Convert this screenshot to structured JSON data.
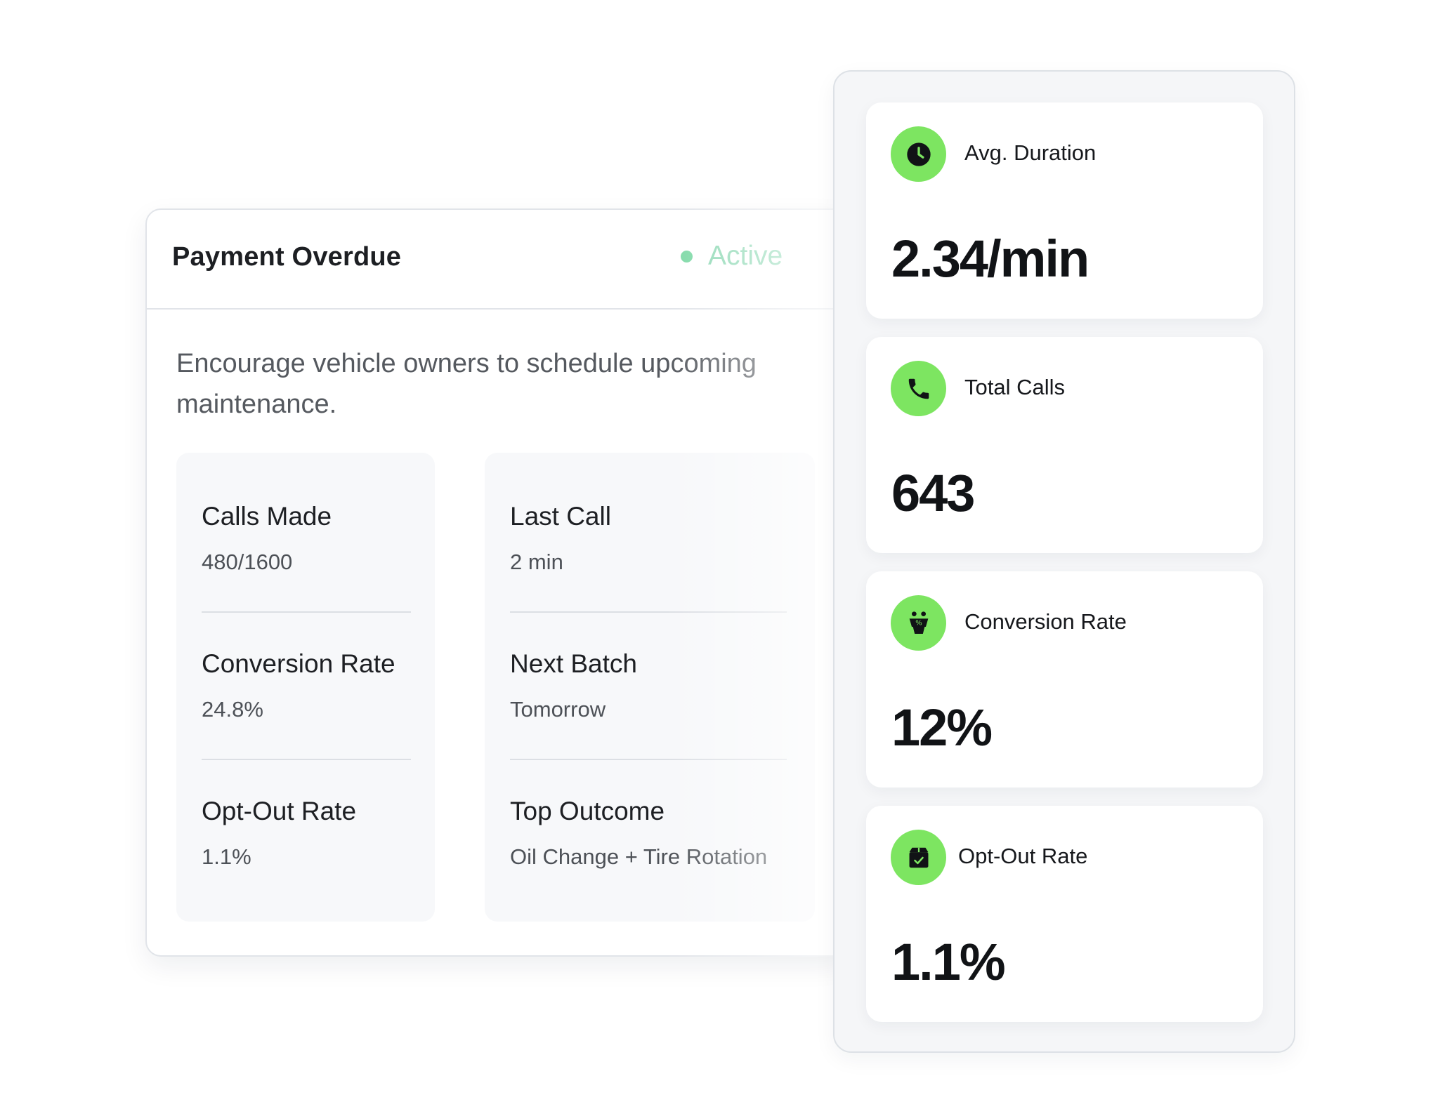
{
  "campaign": {
    "title": "Payment Overdue",
    "status": "Active",
    "description": "Encourage vehicle owners to schedule upcoming maintenance.",
    "stats_left": [
      {
        "label": "Calls Made",
        "value": "480/1600"
      },
      {
        "label": "Conversion Rate",
        "value": "24.8%"
      },
      {
        "label": "Opt-Out Rate",
        "value": "1.1%"
      }
    ],
    "stats_right": [
      {
        "label": "Last Call",
        "value": "2 min"
      },
      {
        "label": "Next Batch",
        "value": "Tomorrow"
      },
      {
        "label": "Top Outcome",
        "value": "Oil Change + Tire Rotation"
      }
    ]
  },
  "metrics": [
    {
      "icon": "clock-icon",
      "label": "Avg. Duration",
      "value": "2.34/min"
    },
    {
      "icon": "phone-icon",
      "label": "Total Calls",
      "value": "643"
    },
    {
      "icon": "conversion-icon",
      "label": "Conversion Rate",
      "value": "12%"
    },
    {
      "icon": "opt-out-box-icon",
      "label": "Opt-Out Rate",
      "value": "1.1%"
    }
  ],
  "colors": {
    "accent_green": "#7de561",
    "status_green": "#8fd9b5",
    "text_dark": "#1d1f23"
  }
}
